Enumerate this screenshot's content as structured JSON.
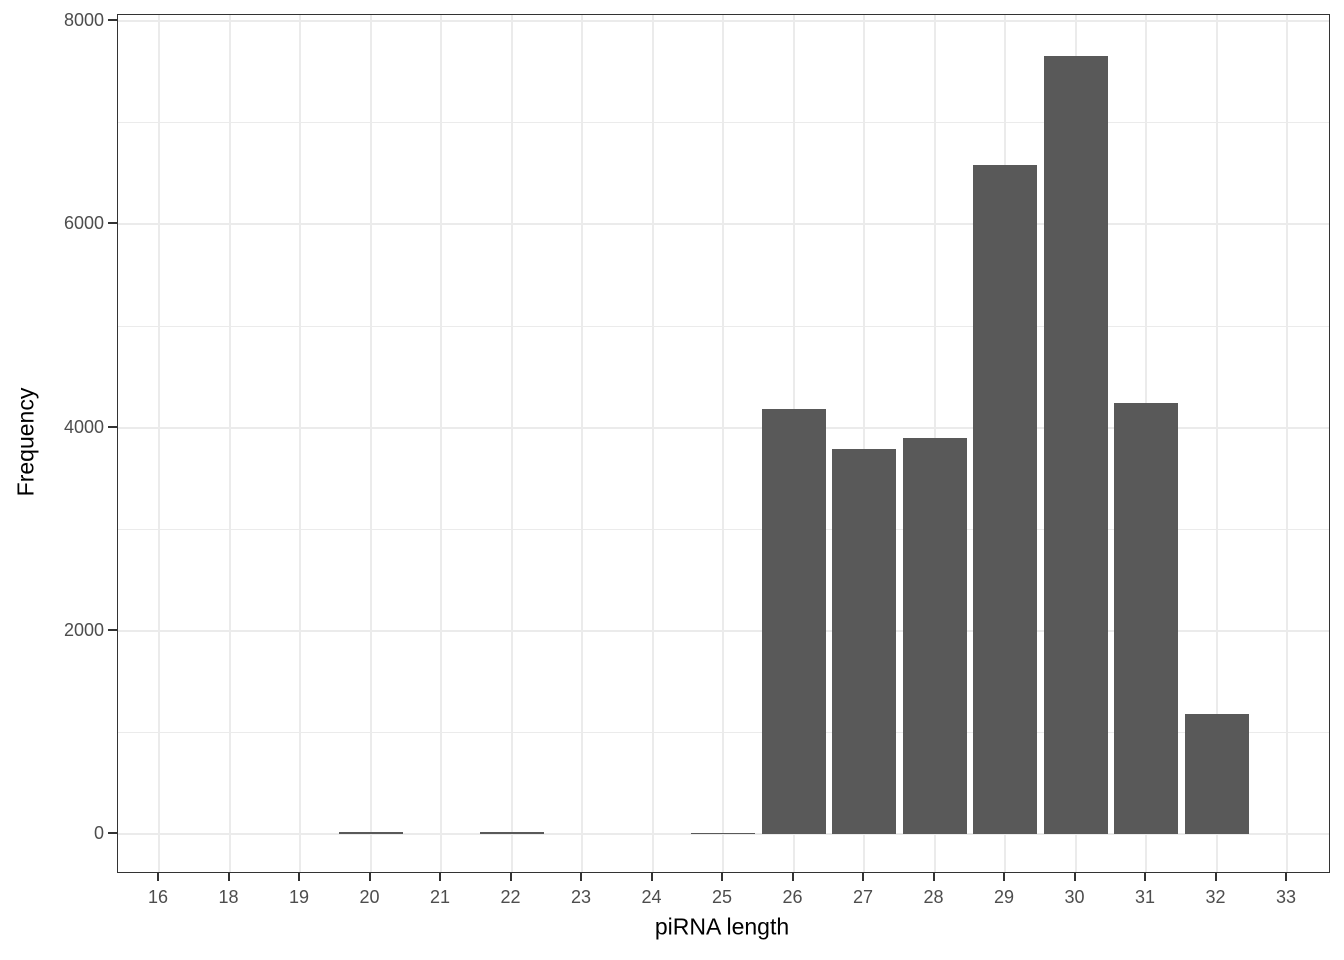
{
  "chart_data": {
    "type": "bar",
    "subtype": "histogram",
    "title": "",
    "xlabel": "piRNA length",
    "ylabel": "Frequency",
    "categories": [
      "16",
      "18",
      "19",
      "20",
      "21",
      "22",
      "23",
      "24",
      "25",
      "26",
      "27",
      "28",
      "29",
      "30",
      "31",
      "32",
      "33"
    ],
    "values": [
      2,
      1,
      3,
      20,
      2,
      17,
      2,
      3,
      13,
      4180,
      3790,
      3900,
      6590,
      7660,
      4240,
      1180,
      3
    ],
    "ylim": [
      0,
      8000
    ],
    "y_ticks": [
      0,
      2000,
      4000,
      6000,
      8000
    ],
    "y_tick_labels": [
      "0",
      "2000",
      "4000",
      "6000",
      "8000"
    ],
    "y_minor_ticks": [
      1000,
      3000,
      5000,
      7000
    ],
    "grid": "on",
    "legend_position": "none",
    "bar_color": "#595959",
    "grid_color": "#ebebeb",
    "panel_border_color": "#333333",
    "tick_mark_color": "#333333",
    "tick_label_color": "#4d4d4d",
    "axis_title_color": "#000000",
    "background_color": "#ffffff"
  }
}
